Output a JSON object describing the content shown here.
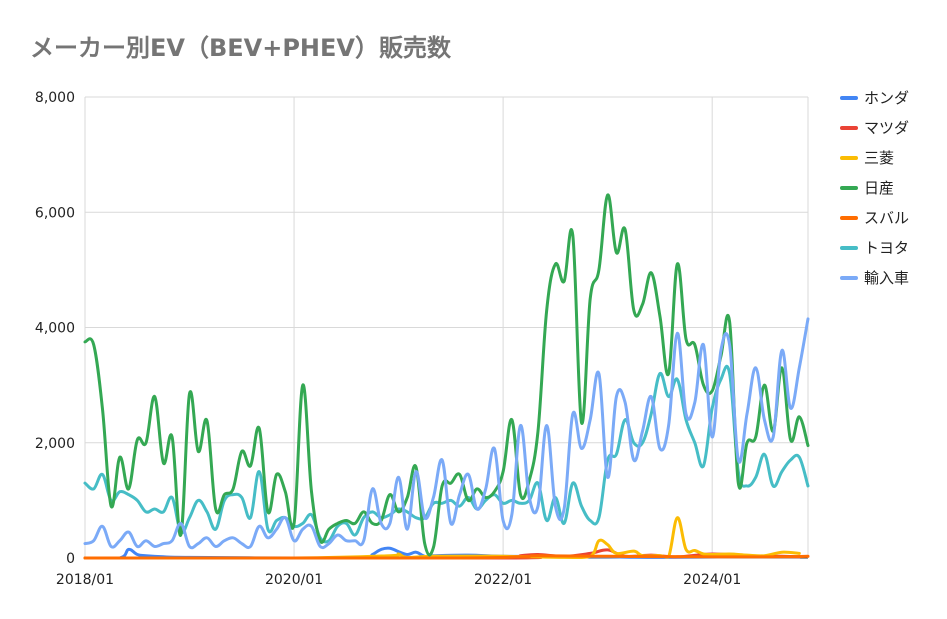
{
  "chart_data": {
    "type": "line",
    "title": "メーカー別EV（BEV+PHEV）販売数",
    "xlabel": "",
    "ylabel": "",
    "x_ticks": [
      "2018/01",
      "2020/01",
      "2022/01",
      "2024/01"
    ],
    "y_ticks": [
      "0",
      "2,000",
      "4,000",
      "6,000",
      "8,000"
    ],
    "ylim": [
      0,
      8000
    ],
    "x_start": "2018-01",
    "months": 83,
    "grid": true,
    "legend_position": "right",
    "series": [
      {
        "name": "ホンダ",
        "color": "#4285f4",
        "values": [
          [
            0,
            0
          ],
          [
            4,
            0
          ],
          [
            5,
            150
          ],
          [
            6,
            60
          ],
          [
            7,
            40
          ],
          [
            9,
            20
          ],
          [
            12,
            10
          ],
          [
            24,
            0
          ],
          [
            32,
            0
          ],
          [
            33,
            60
          ],
          [
            34,
            150
          ],
          [
            35,
            170
          ],
          [
            36,
            110
          ],
          [
            37,
            60
          ],
          [
            38,
            100
          ],
          [
            39,
            30
          ],
          [
            40,
            40
          ],
          [
            44,
            50
          ],
          [
            48,
            30
          ],
          [
            52,
            30
          ],
          [
            60,
            20
          ],
          [
            66,
            10
          ],
          [
            76,
            20
          ],
          [
            82,
            20
          ]
        ]
      },
      {
        "name": "マツダ",
        "color": "#ea4335",
        "values": [
          [
            0,
            0
          ],
          [
            48,
            0
          ],
          [
            50,
            40
          ],
          [
            52,
            60
          ],
          [
            55,
            30
          ],
          [
            58,
            80
          ],
          [
            60,
            140
          ],
          [
            62,
            30
          ],
          [
            65,
            50
          ],
          [
            68,
            20
          ],
          [
            72,
            70
          ],
          [
            76,
            40
          ],
          [
            80,
            30
          ],
          [
            82,
            20
          ]
        ]
      },
      {
        "name": "三菱",
        "color": "#fbbc04",
        "values": [
          [
            0,
            0
          ],
          [
            24,
            0
          ],
          [
            35,
            40
          ],
          [
            36,
            70
          ],
          [
            37,
            10
          ],
          [
            40,
            30
          ],
          [
            48,
            30
          ],
          [
            55,
            10
          ],
          [
            58,
            30
          ],
          [
            59,
            300
          ],
          [
            60,
            230
          ],
          [
            61,
            80
          ],
          [
            63,
            120
          ],
          [
            64,
            40
          ],
          [
            66,
            40
          ],
          [
            67,
            20
          ],
          [
            68,
            700
          ],
          [
            69,
            150
          ],
          [
            70,
            130
          ],
          [
            71,
            70
          ],
          [
            72,
            60
          ],
          [
            74,
            70
          ],
          [
            76,
            50
          ],
          [
            78,
            40
          ],
          [
            80,
            100
          ],
          [
            82,
            80
          ]
        ]
      },
      {
        "name": "日産",
        "color": "#34a853",
        "values": [
          [
            0,
            3750
          ],
          [
            1,
            3700
          ],
          [
            2,
            2600
          ],
          [
            3,
            900
          ],
          [
            4,
            1750
          ],
          [
            5,
            1200
          ],
          [
            6,
            2050
          ],
          [
            7,
            2000
          ],
          [
            8,
            2800
          ],
          [
            9,
            1650
          ],
          [
            10,
            2100
          ],
          [
            11,
            400
          ],
          [
            12,
            2850
          ],
          [
            13,
            1850
          ],
          [
            14,
            2380
          ],
          [
            15,
            850
          ],
          [
            16,
            1100
          ],
          [
            17,
            1200
          ],
          [
            18,
            1850
          ],
          [
            19,
            1600
          ],
          [
            20,
            2250
          ],
          [
            21,
            800
          ],
          [
            22,
            1450
          ],
          [
            23,
            1150
          ],
          [
            24,
            600
          ],
          [
            25,
            3000
          ],
          [
            26,
            1150
          ],
          [
            27,
            300
          ],
          [
            28,
            500
          ],
          [
            29,
            600
          ],
          [
            30,
            650
          ],
          [
            31,
            600
          ],
          [
            32,
            800
          ],
          [
            33,
            600
          ],
          [
            34,
            650
          ],
          [
            35,
            1100
          ],
          [
            36,
            800
          ],
          [
            37,
            1050
          ],
          [
            38,
            1580
          ],
          [
            39,
            250
          ],
          [
            40,
            180
          ],
          [
            41,
            1250
          ],
          [
            42,
            1300
          ],
          [
            43,
            1450
          ],
          [
            44,
            1000
          ],
          [
            45,
            1200
          ],
          [
            46,
            1050
          ],
          [
            47,
            1150
          ],
          [
            48,
            1500
          ],
          [
            49,
            2400
          ],
          [
            50,
            1100
          ],
          [
            51,
            1350
          ],
          [
            52,
            2200
          ],
          [
            53,
            4300
          ],
          [
            54,
            5100
          ],
          [
            55,
            4800
          ],
          [
            56,
            5600
          ],
          [
            57,
            2350
          ],
          [
            58,
            4500
          ],
          [
            59,
            5000
          ],
          [
            60,
            6300
          ],
          [
            61,
            5300
          ],
          [
            62,
            5700
          ],
          [
            63,
            4300
          ],
          [
            64,
            4400
          ],
          [
            65,
            4950
          ],
          [
            66,
            4200
          ],
          [
            67,
            3200
          ],
          [
            68,
            5100
          ],
          [
            69,
            3800
          ],
          [
            70,
            3700
          ],
          [
            71,
            3000
          ],
          [
            72,
            2900
          ],
          [
            73,
            3500
          ],
          [
            74,
            4100
          ],
          [
            75,
            1300
          ],
          [
            76,
            2000
          ],
          [
            77,
            2100
          ],
          [
            78,
            3000
          ],
          [
            79,
            2200
          ],
          [
            80,
            3300
          ],
          [
            81,
            2050
          ],
          [
            82,
            2450
          ],
          [
            83,
            1950
          ]
        ]
      },
      {
        "name": "スバル",
        "color": "#ff6d01",
        "values": [
          [
            0,
            0
          ],
          [
            40,
            0
          ],
          [
            50,
            20
          ],
          [
            52,
            40
          ],
          [
            60,
            30
          ],
          [
            70,
            20
          ],
          [
            80,
            20
          ],
          [
            83,
            30
          ]
        ]
      },
      {
        "name": "トヨタ",
        "color": "#46bdc6",
        "values": [
          [
            0,
            1300
          ],
          [
            1,
            1200
          ],
          [
            2,
            1450
          ],
          [
            3,
            1000
          ],
          [
            4,
            1150
          ],
          [
            5,
            1100
          ],
          [
            6,
            1000
          ],
          [
            7,
            800
          ],
          [
            8,
            850
          ],
          [
            9,
            800
          ],
          [
            10,
            1050
          ],
          [
            11,
            450
          ],
          [
            12,
            700
          ],
          [
            13,
            1000
          ],
          [
            14,
            800
          ],
          [
            15,
            500
          ],
          [
            16,
            1000
          ],
          [
            17,
            1100
          ],
          [
            18,
            1050
          ],
          [
            19,
            700
          ],
          [
            20,
            1500
          ],
          [
            21,
            500
          ],
          [
            22,
            650
          ],
          [
            23,
            700
          ],
          [
            24,
            550
          ],
          [
            25,
            600
          ],
          [
            26,
            750
          ],
          [
            27,
            350
          ],
          [
            28,
            300
          ],
          [
            29,
            550
          ],
          [
            30,
            600
          ],
          [
            31,
            400
          ],
          [
            32,
            700
          ],
          [
            33,
            800
          ],
          [
            34,
            700
          ],
          [
            35,
            750
          ],
          [
            36,
            850
          ],
          [
            37,
            800
          ],
          [
            38,
            700
          ],
          [
            39,
            700
          ],
          [
            40,
            950
          ],
          [
            41,
            950
          ],
          [
            42,
            1000
          ],
          [
            43,
            900
          ],
          [
            44,
            1050
          ],
          [
            45,
            850
          ],
          [
            46,
            1000
          ],
          [
            47,
            1100
          ],
          [
            48,
            950
          ],
          [
            49,
            1000
          ],
          [
            50,
            950
          ],
          [
            51,
            1000
          ],
          [
            52,
            1300
          ],
          [
            53,
            650
          ],
          [
            54,
            1050
          ],
          [
            55,
            600
          ],
          [
            56,
            1300
          ],
          [
            57,
            900
          ],
          [
            58,
            650
          ],
          [
            59,
            700
          ],
          [
            60,
            1700
          ],
          [
            61,
            1800
          ],
          [
            62,
            2400
          ],
          [
            63,
            2000
          ],
          [
            64,
            2000
          ],
          [
            65,
            2500
          ],
          [
            66,
            3200
          ],
          [
            67,
            2800
          ],
          [
            68,
            3100
          ],
          [
            69,
            2400
          ],
          [
            70,
            2000
          ],
          [
            71,
            1600
          ],
          [
            72,
            2600
          ],
          [
            73,
            3100
          ],
          [
            74,
            3200
          ],
          [
            75,
            1500
          ],
          [
            76,
            1250
          ],
          [
            77,
            1400
          ],
          [
            78,
            1800
          ],
          [
            79,
            1250
          ],
          [
            80,
            1500
          ],
          [
            81,
            1700
          ],
          [
            82,
            1750
          ],
          [
            83,
            1250
          ]
        ]
      },
      {
        "name": "輸入車",
        "color": "#7baaf7",
        "values": [
          [
            0,
            250
          ],
          [
            1,
            300
          ],
          [
            2,
            550
          ],
          [
            3,
            200
          ],
          [
            4,
            300
          ],
          [
            5,
            450
          ],
          [
            6,
            200
          ],
          [
            7,
            300
          ],
          [
            8,
            200
          ],
          [
            9,
            250
          ],
          [
            10,
            300
          ],
          [
            11,
            600
          ],
          [
            12,
            200
          ],
          [
            13,
            250
          ],
          [
            14,
            350
          ],
          [
            15,
            200
          ],
          [
            16,
            300
          ],
          [
            17,
            350
          ],
          [
            18,
            250
          ],
          [
            19,
            200
          ],
          [
            20,
            550
          ],
          [
            21,
            350
          ],
          [
            22,
            500
          ],
          [
            23,
            700
          ],
          [
            24,
            300
          ],
          [
            25,
            500
          ],
          [
            26,
            550
          ],
          [
            27,
            200
          ],
          [
            28,
            250
          ],
          [
            29,
            400
          ],
          [
            30,
            300
          ],
          [
            31,
            300
          ],
          [
            32,
            300
          ],
          [
            33,
            1200
          ],
          [
            34,
            600
          ],
          [
            35,
            600
          ],
          [
            36,
            1400
          ],
          [
            37,
            500
          ],
          [
            38,
            1500
          ],
          [
            39,
            700
          ],
          [
            40,
            1050
          ],
          [
            41,
            1700
          ],
          [
            42,
            600
          ],
          [
            43,
            1100
          ],
          [
            44,
            1450
          ],
          [
            45,
            850
          ],
          [
            46,
            1200
          ],
          [
            47,
            1900
          ],
          [
            48,
            650
          ],
          [
            49,
            750
          ],
          [
            50,
            2300
          ],
          [
            51,
            1050
          ],
          [
            52,
            900
          ],
          [
            53,
            2300
          ],
          [
            54,
            900
          ],
          [
            55,
            850
          ],
          [
            56,
            2500
          ],
          [
            57,
            1900
          ],
          [
            58,
            2400
          ],
          [
            59,
            3200
          ],
          [
            60,
            1400
          ],
          [
            61,
            2800
          ],
          [
            62,
            2700
          ],
          [
            63,
            1700
          ],
          [
            64,
            2200
          ],
          [
            65,
            2800
          ],
          [
            66,
            1900
          ],
          [
            67,
            2300
          ],
          [
            68,
            3900
          ],
          [
            69,
            2500
          ],
          [
            70,
            2700
          ],
          [
            71,
            3700
          ],
          [
            72,
            2100
          ],
          [
            73,
            3600
          ],
          [
            74,
            3700
          ],
          [
            75,
            1700
          ],
          [
            76,
            2500
          ],
          [
            77,
            3300
          ],
          [
            78,
            2400
          ],
          [
            79,
            2100
          ],
          [
            80,
            3600
          ],
          [
            81,
            2600
          ],
          [
            82,
            3300
          ],
          [
            83,
            4150
          ]
        ]
      }
    ]
  }
}
